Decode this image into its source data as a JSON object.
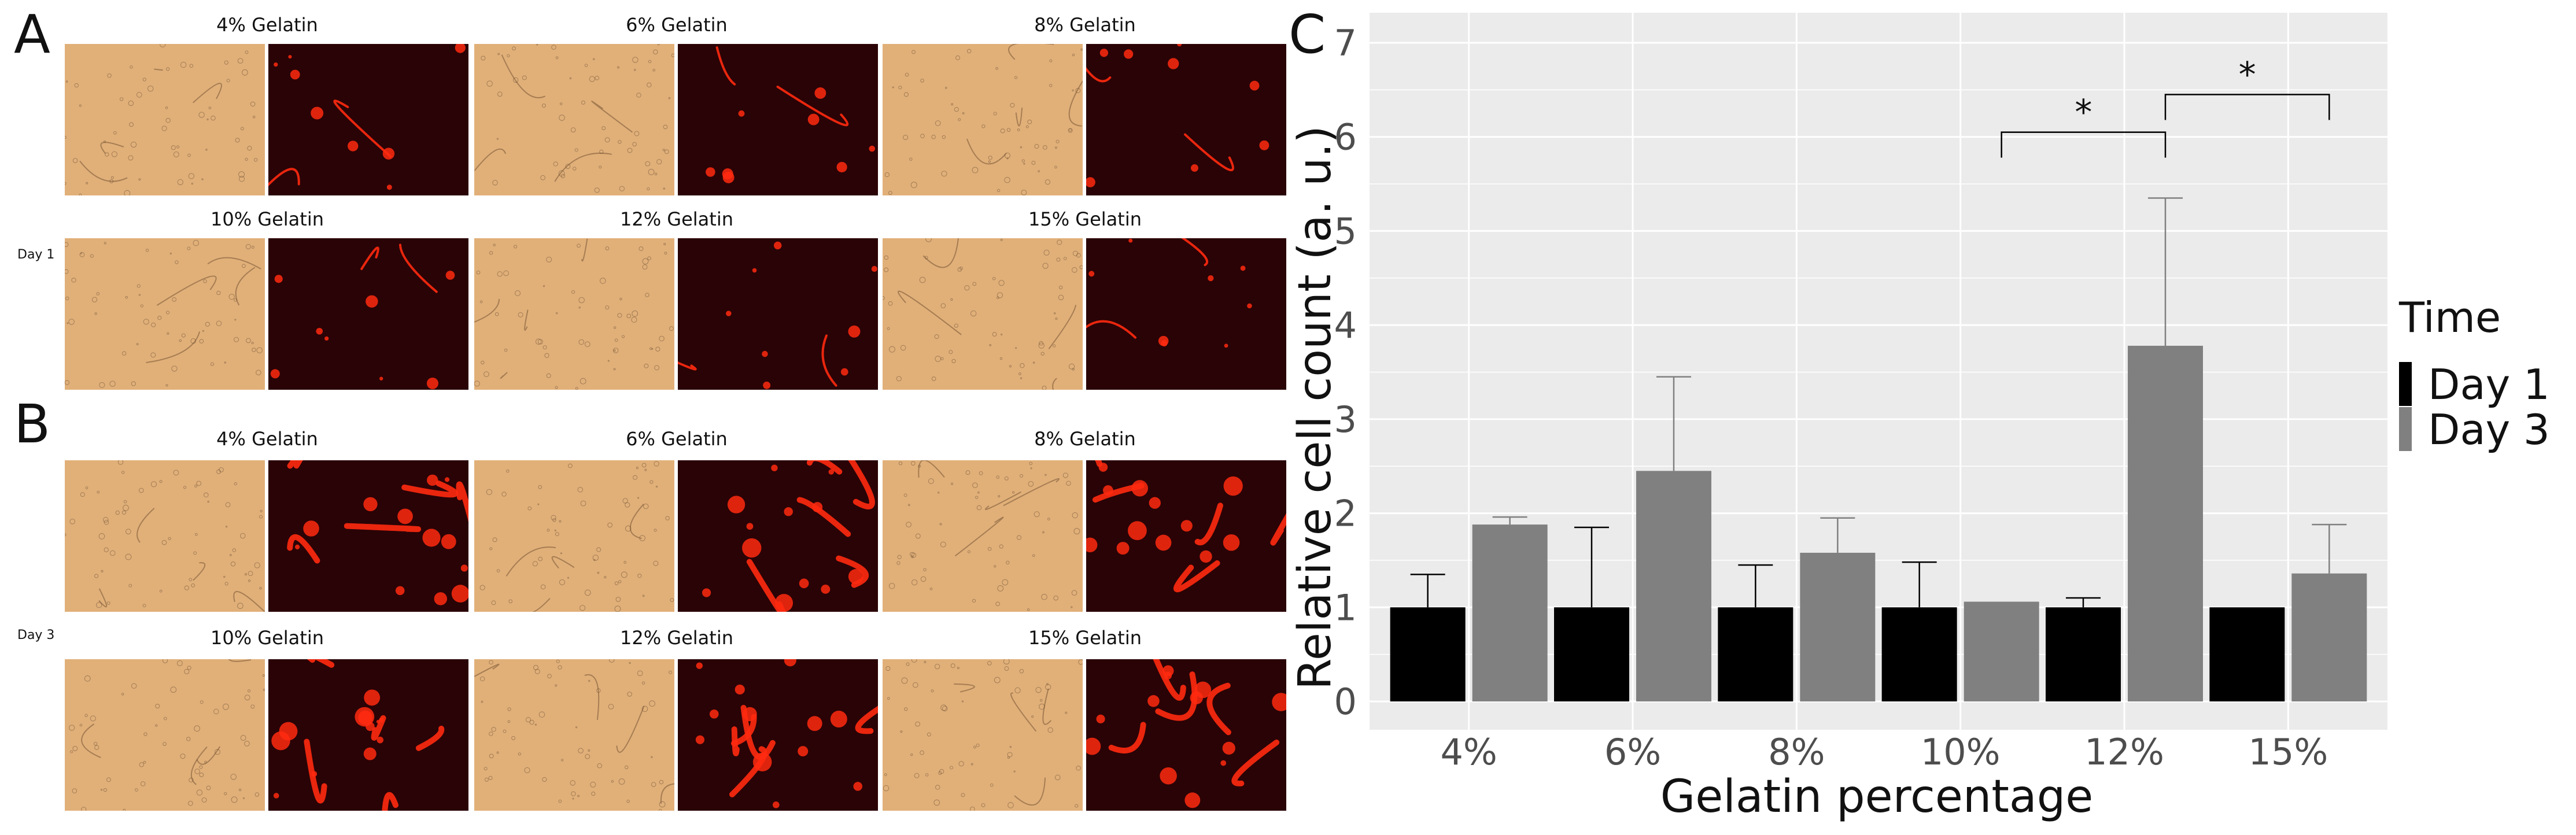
{
  "panels": {
    "A": {
      "letter": "A",
      "day_label": "Day 1",
      "rows": [
        [
          "4% Gelatin",
          "6% Gelatin",
          "8% Gelatin"
        ],
        [
          "10% Gelatin",
          "12% Gelatin",
          "15% Gelatin"
        ]
      ]
    },
    "B": {
      "letter": "B",
      "day_label": "Day 3",
      "rows": [
        [
          "4% Gelatin",
          "6% Gelatin",
          "8% Gelatin"
        ],
        [
          "10% Gelatin",
          "12% Gelatin",
          "15% Gelatin"
        ]
      ]
    },
    "C": {
      "letter": "C"
    }
  },
  "colors": {
    "brightfield": "#d9a36a",
    "fluorescence_bg": "#2a0306",
    "fluorescence_signal": "#ff2a10",
    "day1": "#000000",
    "day3": "#808080",
    "plot_bg": "#ebebeb",
    "grid": "#ffffff"
  },
  "chart_data": {
    "type": "bar",
    "categories": [
      "4%",
      "6%",
      "8%",
      "10%",
      "12%",
      "15%"
    ],
    "xlabel": "Gelatin percentage",
    "ylabel": "Relative cell count (a. u.)",
    "ylim": [
      0,
      7
    ],
    "yticks": [
      0,
      1,
      2,
      3,
      4,
      5,
      6,
      7
    ],
    "grid": true,
    "legend": {
      "title": "Time",
      "position": "right"
    },
    "series": [
      {
        "name": "Day 1",
        "color": "#000000",
        "values": [
          1.0,
          1.0,
          1.0,
          1.0,
          1.0,
          1.0
        ],
        "errors": [
          0.35,
          0.85,
          0.45,
          0.48,
          0.1,
          0.0
        ]
      },
      {
        "name": "Day 3",
        "color": "#808080",
        "values": [
          1.88,
          2.45,
          1.58,
          1.06,
          3.78,
          1.36
        ],
        "errors": [
          0.08,
          1.0,
          0.37,
          0.0,
          1.57,
          0.52
        ]
      }
    ],
    "significance": [
      {
        "from": {
          "category": "10%",
          "series": "Day 3"
        },
        "to": {
          "category": "12%",
          "series": "Day 3"
        },
        "y": 6.05,
        "label": "*"
      },
      {
        "from": {
          "category": "12%",
          "series": "Day 3"
        },
        "to": {
          "category": "15%",
          "series": "Day 3"
        },
        "y": 6.45,
        "label": "*"
      }
    ]
  }
}
